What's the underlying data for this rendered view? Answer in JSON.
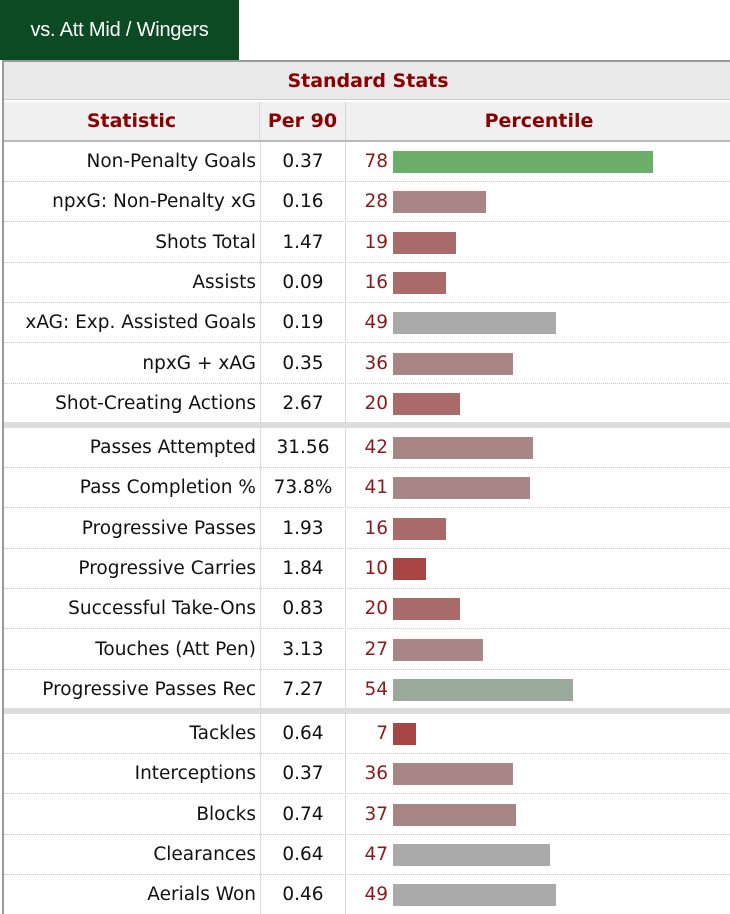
{
  "tab": {
    "label": "vs. Att Mid / Wingers"
  },
  "table": {
    "title": "Standard Stats",
    "headers": {
      "statistic": "Statistic",
      "per90": "Per 90",
      "percentile": "Percentile"
    }
  },
  "colors": {
    "high": "#6aae6a",
    "mid_green": "#9aaa9a",
    "neutral": "#aaaaaa",
    "low_light": "#a98686",
    "low": "#a96a6a",
    "very_low": "#a84646"
  },
  "chart_data": {
    "type": "bar",
    "xlim": [
      0,
      100
    ],
    "groups": [
      {
        "rows": [
          {
            "statistic": "Non-Penalty Goals",
            "per90": "0.37",
            "percentile": 78
          },
          {
            "statistic": "npxG: Non-Penalty xG",
            "per90": "0.16",
            "percentile": 28
          },
          {
            "statistic": "Shots Total",
            "per90": "1.47",
            "percentile": 19
          },
          {
            "statistic": "Assists",
            "per90": "0.09",
            "percentile": 16
          },
          {
            "statistic": "xAG: Exp. Assisted Goals",
            "per90": "0.19",
            "percentile": 49
          },
          {
            "statistic": "npxG + xAG",
            "per90": "0.35",
            "percentile": 36
          },
          {
            "statistic": "Shot-Creating Actions",
            "per90": "2.67",
            "percentile": 20
          }
        ]
      },
      {
        "rows": [
          {
            "statistic": "Passes Attempted",
            "per90": "31.56",
            "percentile": 42
          },
          {
            "statistic": "Pass Completion %",
            "per90": "73.8%",
            "percentile": 41
          },
          {
            "statistic": "Progressive Passes",
            "per90": "1.93",
            "percentile": 16
          },
          {
            "statistic": "Progressive Carries",
            "per90": "1.84",
            "percentile": 10
          },
          {
            "statistic": "Successful Take-Ons",
            "per90": "0.83",
            "percentile": 20
          },
          {
            "statistic": "Touches (Att Pen)",
            "per90": "3.13",
            "percentile": 27
          },
          {
            "statistic": "Progressive Passes Rec",
            "per90": "7.27",
            "percentile": 54
          }
        ]
      },
      {
        "rows": [
          {
            "statistic": "Tackles",
            "per90": "0.64",
            "percentile": 7
          },
          {
            "statistic": "Interceptions",
            "per90": "0.37",
            "percentile": 36
          },
          {
            "statistic": "Blocks",
            "per90": "0.74",
            "percentile": 37
          },
          {
            "statistic": "Clearances",
            "per90": "0.64",
            "percentile": 47
          },
          {
            "statistic": "Aerials Won",
            "per90": "0.46",
            "percentile": 49
          }
        ]
      }
    ]
  }
}
